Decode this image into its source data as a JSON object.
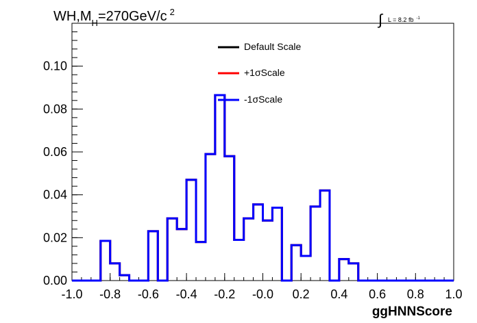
{
  "chart_data": {
    "type": "line",
    "title": "WH,M_{H}=270GeV/c^{2}",
    "title_parts": {
      "main": "WH,M",
      "sub": "H",
      "after": "=270GeV/c",
      "sup": "2"
    },
    "lumi": {
      "integral_sign": "∫",
      "text": "L = 8.2 fb",
      "sup": "-1"
    },
    "xlabel": "ggHNNScore",
    "ylabel": "",
    "xlim": [
      -1.0,
      1.0
    ],
    "ylim": [
      0,
      0.12
    ],
    "x_ticks": [
      "-1.0",
      "-0.8",
      "-0.6",
      "-0.4",
      "-0.2",
      "-0.0",
      "0.2",
      "0.4",
      "0.6",
      "0.8",
      "1.0"
    ],
    "y_ticks": [
      "0.00",
      "0.02",
      "0.04",
      "0.06",
      "0.08",
      "0.10"
    ],
    "bin_edges_start": -1.0,
    "bin_width": 0.05,
    "grid": false,
    "legend_position": "top-center",
    "series": [
      {
        "name": "Default Scale",
        "color": "#000000",
        "values": [
          0,
          0,
          0,
          0.0185,
          0.008,
          0.0025,
          0,
          0,
          0.023,
          0,
          0.029,
          0.024,
          0.047,
          0.018,
          0.059,
          0.0865,
          0.058,
          0.019,
          0.029,
          0.0355,
          0.028,
          0.034,
          0,
          0.0165,
          0.0115,
          0.0345,
          0.042,
          0,
          0.01,
          0.008,
          0,
          0,
          0,
          0,
          0,
          0,
          0,
          0,
          0,
          0
        ]
      },
      {
        "name": "+1σScale",
        "color": "#ff0000",
        "values": [
          0,
          0,
          0,
          0.0185,
          0.008,
          0.0025,
          0,
          0,
          0.023,
          0,
          0.029,
          0.024,
          0.047,
          0.018,
          0.059,
          0.0865,
          0.058,
          0.019,
          0.029,
          0.0355,
          0.028,
          0.034,
          0,
          0.0165,
          0.0115,
          0.0345,
          0.042,
          0,
          0.01,
          0.008,
          0,
          0,
          0,
          0,
          0,
          0,
          0,
          0,
          0,
          0
        ]
      },
      {
        "name": "-1σScale",
        "color": "#0000ff",
        "values": [
          0,
          0,
          0,
          0.0185,
          0.008,
          0.0025,
          0,
          0,
          0.023,
          0,
          0.029,
          0.024,
          0.047,
          0.018,
          0.059,
          0.0865,
          0.058,
          0.019,
          0.029,
          0.0355,
          0.028,
          0.034,
          0,
          0.0165,
          0.0115,
          0.0345,
          0.042,
          0,
          0.01,
          0.008,
          0,
          0,
          0,
          0,
          0,
          0,
          0,
          0,
          0,
          0
        ]
      }
    ]
  }
}
